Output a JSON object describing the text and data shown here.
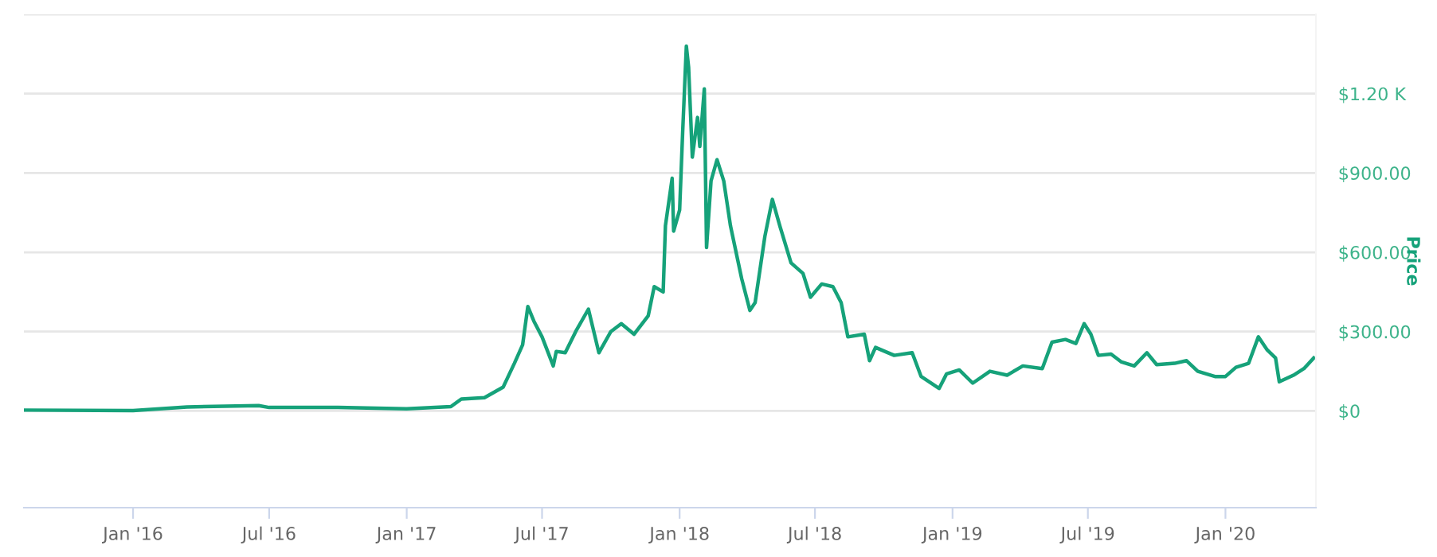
{
  "chart_data": {
    "type": "line",
    "ylabel": "Price",
    "x": [
      "2015-08-08",
      "2016-01-01",
      "2016-03-13",
      "2016-06-17",
      "2016-07-01",
      "2016-10-01",
      "2017-01-01",
      "2017-03-01",
      "2017-03-15",
      "2017-04-15",
      "2017-05-10",
      "2017-05-25",
      "2017-06-05",
      "2017-06-12",
      "2017-06-20",
      "2017-07-01",
      "2017-07-16",
      "2017-07-20",
      "2017-08-01",
      "2017-08-15",
      "2017-09-01",
      "2017-09-15",
      "2017-10-01",
      "2017-10-15",
      "2017-11-01",
      "2017-11-20",
      "2017-11-28",
      "2017-12-10",
      "2017-12-13",
      "2017-12-22",
      "2017-12-24",
      "2018-01-01",
      "2018-01-05",
      "2018-01-10",
      "2018-01-13",
      "2018-01-18",
      "2018-01-25",
      "2018-01-28",
      "2018-02-03",
      "2018-02-06",
      "2018-02-12",
      "2018-02-20",
      "2018-03-01",
      "2018-03-10",
      "2018-03-25",
      "2018-04-05",
      "2018-04-12",
      "2018-04-25",
      "2018-05-05",
      "2018-05-15",
      "2018-05-30",
      "2018-06-15",
      "2018-06-25",
      "2018-07-10",
      "2018-07-25",
      "2018-08-05",
      "2018-08-14",
      "2018-09-05",
      "2018-09-12",
      "2018-09-20",
      "2018-10-15",
      "2018-11-08",
      "2018-11-20",
      "2018-12-14",
      "2018-12-24",
      "2019-01-10",
      "2019-01-28",
      "2019-02-20",
      "2019-03-15",
      "2019-04-05",
      "2019-05-01",
      "2019-05-14",
      "2019-06-01",
      "2019-06-15",
      "2019-06-26",
      "2019-07-05",
      "2019-07-15",
      "2019-08-01",
      "2019-08-15",
      "2019-09-01",
      "2019-09-18",
      "2019-10-01",
      "2019-10-25",
      "2019-11-10",
      "2019-11-25",
      "2019-12-18",
      "2020-01-01",
      "2020-01-15",
      "2020-02-01",
      "2020-02-14",
      "2020-02-26",
      "2020-03-08",
      "2020-03-13",
      "2020-04-01",
      "2020-04-15",
      "2020-04-28"
    ],
    "series": [
      {
        "color": "#16a27a",
        "values": [
          3,
          1,
          15,
          20,
          13,
          13,
          8,
          16,
          45,
          50,
          90,
          180,
          250,
          395,
          340,
          280,
          170,
          225,
          220,
          300,
          385,
          220,
          300,
          330,
          290,
          360,
          470,
          450,
          700,
          880,
          680,
          760,
          1050,
          1380,
          1300,
          960,
          1110,
          1000,
          1218,
          618,
          870,
          950,
          870,
          700,
          500,
          380,
          410,
          660,
          800,
          700,
          560,
          520,
          430,
          480,
          470,
          410,
          280,
          290,
          190,
          240,
          210,
          220,
          130,
          85,
          140,
          155,
          105,
          150,
          135,
          170,
          160,
          260,
          270,
          255,
          330,
          290,
          210,
          215,
          185,
          170,
          220,
          175,
          180,
          190,
          150,
          130,
          130,
          165,
          180,
          280,
          230,
          200,
          110,
          135,
          160,
          200
        ]
      }
    ],
    "xlim": [
      "2015-08-08",
      "2020-05-01"
    ],
    "xticks": [
      {
        "value": "2016-01-01",
        "label": "Jan '16"
      },
      {
        "value": "2016-07-01",
        "label": "Jul '16"
      },
      {
        "value": "2017-01-01",
        "label": "Jan '17"
      },
      {
        "value": "2017-07-01",
        "label": "Jul '17"
      },
      {
        "value": "2018-01-01",
        "label": "Jan '18"
      },
      {
        "value": "2018-07-01",
        "label": "Jul '18"
      },
      {
        "value": "2019-01-01",
        "label": "Jan '19"
      },
      {
        "value": "2019-07-01",
        "label": "Jul '19"
      },
      {
        "value": "2020-01-01",
        "label": "Jan '20"
      }
    ],
    "ylim": [
      -366,
      1500
    ],
    "yticks": [
      {
        "value": 0,
        "label": "$0"
      },
      {
        "value": 300,
        "label": "$300.00"
      },
      {
        "value": 600,
        "label": "$600.00"
      },
      {
        "value": 900,
        "label": "$900.00"
      },
      {
        "value": 1200,
        "label": "$1.20 K"
      },
      {
        "value": 1500,
        "label": null
      }
    ],
    "grid": "y",
    "legend": false,
    "marker": "none",
    "line_style": "solid"
  }
}
